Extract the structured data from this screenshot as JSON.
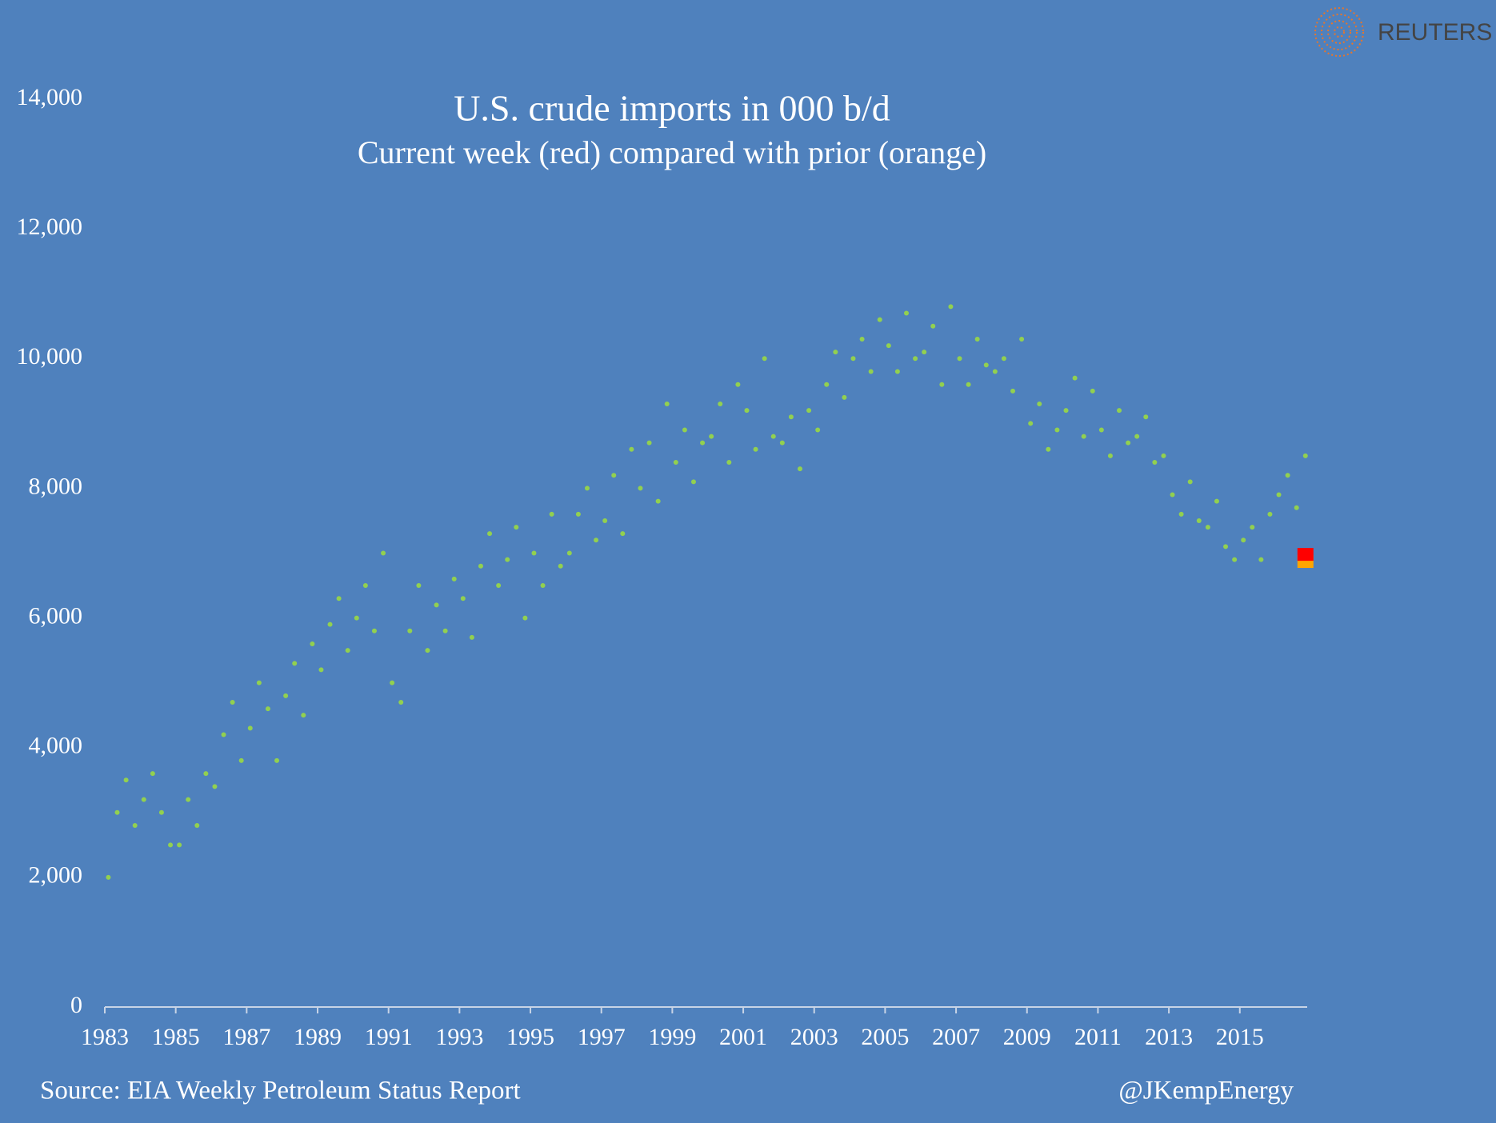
{
  "chart_data": {
    "type": "scatter",
    "title": "U.S. crude imports in 000 b/d",
    "subtitle": "Current week (red) compared with prior (orange)",
    "source": "Source: EIA Weekly Petroleum Status Report",
    "credit": "@JKempEnergy",
    "logo": "REUTERS",
    "xlim": [
      1983,
      2016.9
    ],
    "ylim": [
      0,
      14000
    ],
    "xticks": [
      1983,
      1985,
      1987,
      1989,
      1991,
      1993,
      1995,
      1997,
      1999,
      2001,
      2003,
      2005,
      2007,
      2009,
      2011,
      2013,
      2015
    ],
    "yticks": [
      0,
      {
        "value": 2000,
        "label": "2,000"
      },
      {
        "value": 4000,
        "label": "4,000"
      },
      {
        "value": 6000,
        "label": "6,000"
      },
      {
        "value": 8000,
        "label": "8,000"
      },
      {
        "value": 10000,
        "label": "10,000"
      },
      {
        "value": 12000,
        "label": "12,000"
      },
      {
        "value": 14000,
        "label": "14,000"
      }
    ],
    "series": [
      {
        "color": "#92d050",
        "marker": "dot",
        "x": [
          1983.1,
          1983.35,
          1983.6,
          1983.85,
          1984.1,
          1984.35,
          1984.6,
          1984.85,
          1985.1,
          1985.35,
          1985.6,
          1985.85,
          1986.1,
          1986.35,
          1986.6,
          1986.85,
          1987.1,
          1987.35,
          1987.6,
          1987.85,
          1988.1,
          1988.35,
          1988.6,
          1988.85,
          1989.1,
          1989.35,
          1989.6,
          1989.85,
          1990.1,
          1990.35,
          1990.6,
          1990.85,
          1991.1,
          1991.35,
          1991.6,
          1991.85,
          1992.1,
          1992.35,
          1992.6,
          1992.85,
          1993.1,
          1993.35,
          1993.6,
          1993.85,
          1994.1,
          1994.35,
          1994.6,
          1994.85,
          1995.1,
          1995.35,
          1995.6,
          1995.85,
          1996.1,
          1996.35,
          1996.6,
          1996.85,
          1997.1,
          1997.35,
          1997.6,
          1997.85,
          1998.1,
          1998.35,
          1998.6,
          1998.85,
          1999.1,
          1999.35,
          1999.6,
          1999.85,
          2000.1,
          2000.35,
          2000.6,
          2000.85,
          2001.1,
          2001.35,
          2001.6,
          2001.85,
          2002.1,
          2002.35,
          2002.6,
          2002.85,
          2003.1,
          2003.35,
          2003.6,
          2003.85,
          2004.1,
          2004.35,
          2004.6,
          2004.85,
          2005.1,
          2005.35,
          2005.6,
          2005.85,
          2006.1,
          2006.35,
          2006.6,
          2006.85,
          2007.1,
          2007.35,
          2007.6,
          2007.85,
          2008.1,
          2008.35,
          2008.6,
          2008.85,
          2009.1,
          2009.35,
          2009.6,
          2009.85,
          2010.1,
          2010.35,
          2010.6,
          2010.85,
          2011.1,
          2011.35,
          2011.6,
          2011.85,
          2012.1,
          2012.35,
          2012.6,
          2012.85,
          2013.1,
          2013.35,
          2013.6,
          2013.85,
          2014.1,
          2014.35,
          2014.6,
          2014.85,
          2015.1,
          2015.35,
          2015.6,
          2015.85,
          2016.1,
          2016.35,
          2016.6,
          2016.85
        ],
        "values": [
          2000,
          3000,
          3500,
          2800,
          3200,
          3600,
          3000,
          2500,
          2500,
          3200,
          2800,
          3600,
          3400,
          4200,
          4700,
          3800,
          4300,
          5000,
          4600,
          3800,
          4800,
          5300,
          4500,
          5600,
          5200,
          5900,
          6300,
          5500,
          6000,
          6500,
          5800,
          7000,
          5000,
          4700,
          5800,
          6500,
          5500,
          6200,
          5800,
          6600,
          6300,
          5700,
          6800,
          7300,
          6500,
          6900,
          7400,
          6000,
          7000,
          6500,
          7600,
          6800,
          7000,
          7600,
          8000,
          7200,
          7500,
          8200,
          7300,
          8600,
          8000,
          8700,
          7800,
          9300,
          8400,
          8900,
          8100,
          8700,
          8800,
          9300,
          8400,
          9600,
          9200,
          8600,
          10000,
          8800,
          8700,
          9100,
          8300,
          9200,
          8900,
          9600,
          10100,
          9400,
          10000,
          10300,
          9800,
          10600,
          10200,
          9800,
          10700,
          10000,
          10100,
          10500,
          9600,
          10800,
          10000,
          9600,
          10300,
          9900,
          9800,
          10000,
          9500,
          10300,
          9000,
          9300,
          8600,
          8900,
          9200,
          9700,
          8800,
          9500,
          8900,
          8500,
          9200,
          8700,
          8800,
          9100,
          8400,
          8500,
          7900,
          7600,
          8100,
          7500,
          7400,
          7800,
          7100,
          6900,
          7200,
          7400,
          6900,
          7600,
          7900,
          8200,
          7700,
          8500
        ]
      },
      {
        "color": "#ffa500",
        "marker": "square",
        "x": [
          2016.85
        ],
        "values": [
          6870
        ]
      },
      {
        "color": "#ff0000",
        "marker": "square",
        "x": [
          2016.85
        ],
        "values": [
          6980
        ]
      }
    ]
  }
}
